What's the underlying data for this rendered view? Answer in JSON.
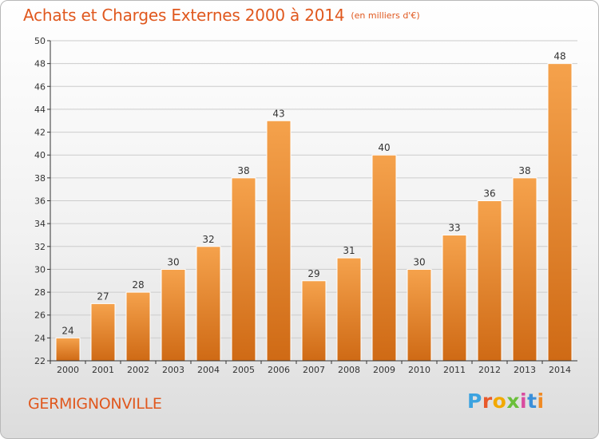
{
  "title": "Achats et Charges Externes 2000 à 2014",
  "unit": "(en milliers d'€)",
  "commune": "GERMIGNONVILLE",
  "logo": {
    "text": "Proxiti",
    "letters": [
      "P",
      "r",
      "o",
      "x",
      "i",
      "t",
      "i"
    ]
  },
  "colors": {
    "bar_top": "#f5a24c",
    "bar_bottom": "#cf6a15",
    "title": "#e0581e"
  },
  "chart_data": {
    "type": "bar",
    "categories": [
      "2000",
      "2001",
      "2002",
      "2003",
      "2004",
      "2005",
      "2006",
      "2007",
      "2008",
      "2009",
      "2010",
      "2011",
      "2012",
      "2013",
      "2014"
    ],
    "values": [
      24,
      27,
      28,
      30,
      32,
      38,
      43,
      29,
      31,
      40,
      30,
      33,
      36,
      38,
      48
    ],
    "ylim": [
      22,
      50
    ],
    "yticks": [
      22,
      24,
      26,
      28,
      30,
      32,
      34,
      36,
      38,
      40,
      42,
      44,
      46,
      48,
      50
    ],
    "grid": true,
    "data_labels": true
  }
}
